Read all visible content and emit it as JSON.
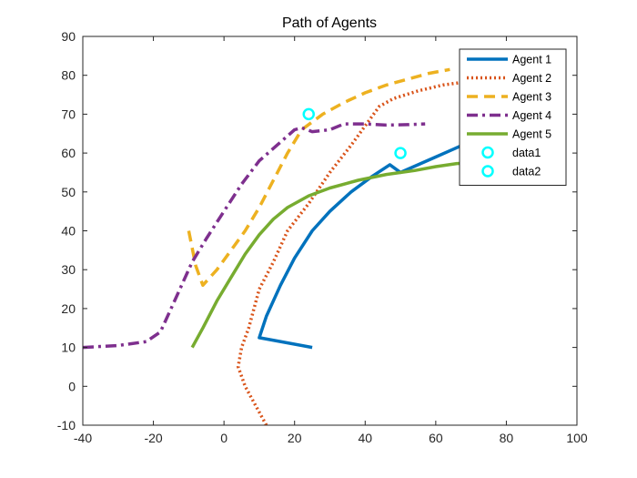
{
  "chart_data": {
    "type": "line",
    "title": "Path of Agents",
    "xlabel": "",
    "ylabel": "",
    "xlim": [
      -40,
      100
    ],
    "ylim": [
      -10,
      90
    ],
    "xticks": [
      -40,
      -20,
      0,
      20,
      40,
      60,
      80,
      100
    ],
    "yticks": [
      -10,
      0,
      10,
      20,
      30,
      40,
      50,
      60,
      70,
      80,
      90
    ],
    "grid": false,
    "legend_position": "top-right",
    "series": [
      {
        "name": "Agent 1",
        "color": "#0072BD",
        "style": "solid",
        "points": [
          [
            25,
            10
          ],
          [
            10,
            12.5
          ],
          [
            12,
            18
          ],
          [
            16,
            26
          ],
          [
            20,
            33
          ],
          [
            25,
            40
          ],
          [
            30,
            45
          ],
          [
            36,
            50
          ],
          [
            42,
            54
          ],
          [
            47,
            57
          ],
          [
            50,
            55
          ],
          [
            55,
            57
          ],
          [
            60,
            59
          ],
          [
            65,
            61
          ],
          [
            70,
            63
          ],
          [
            75,
            65
          ]
        ]
      },
      {
        "name": "Agent 2",
        "color": "#D95319",
        "style": "dotted",
        "points": [
          [
            12,
            -10
          ],
          [
            9,
            -5
          ],
          [
            6,
            0
          ],
          [
            4,
            5
          ],
          [
            5,
            10
          ],
          [
            7,
            15
          ],
          [
            10,
            25
          ],
          [
            14,
            32
          ],
          [
            18,
            40
          ],
          [
            24,
            47
          ],
          [
            30,
            55
          ],
          [
            36,
            62
          ],
          [
            40,
            67
          ],
          [
            44,
            72
          ],
          [
            48,
            74
          ],
          [
            55,
            76
          ],
          [
            62,
            77.5
          ],
          [
            70,
            78.5
          ],
          [
            78,
            79
          ]
        ]
      },
      {
        "name": "Agent 3",
        "color": "#EDB120",
        "style": "dashed",
        "points": [
          [
            -10,
            40
          ],
          [
            -8,
            31
          ],
          [
            -6,
            26
          ],
          [
            -2,
            30
          ],
          [
            2,
            35
          ],
          [
            6,
            40
          ],
          [
            10,
            46
          ],
          [
            14,
            53
          ],
          [
            18,
            60
          ],
          [
            22,
            66
          ],
          [
            28,
            70
          ],
          [
            34,
            73
          ],
          [
            40,
            75.5
          ],
          [
            46,
            77.5
          ],
          [
            52,
            79
          ],
          [
            58,
            80.5
          ],
          [
            64,
            81.5
          ]
        ]
      },
      {
        "name": "Agent 4",
        "color": "#7E2F8E",
        "style": "dashdot",
        "points": [
          [
            -40,
            10
          ],
          [
            -30,
            10.5
          ],
          [
            -22,
            11.5
          ],
          [
            -18,
            14
          ],
          [
            -15,
            20
          ],
          [
            -12,
            26
          ],
          [
            -9,
            32
          ],
          [
            -5,
            38
          ],
          [
            0,
            45
          ],
          [
            5,
            52
          ],
          [
            10,
            58
          ],
          [
            15,
            62
          ],
          [
            20,
            66
          ],
          [
            22,
            66.5
          ],
          [
            25,
            65.5
          ],
          [
            30,
            66
          ],
          [
            34,
            67.5
          ],
          [
            40,
            67.5
          ],
          [
            46,
            67.2
          ],
          [
            52,
            67.3
          ],
          [
            57,
            67.5
          ]
        ]
      },
      {
        "name": "Agent 5",
        "color": "#77AC30",
        "style": "solid",
        "points": [
          [
            -9,
            10
          ],
          [
            -6,
            15
          ],
          [
            -2,
            22
          ],
          [
            2,
            28
          ],
          [
            6,
            34
          ],
          [
            10,
            39
          ],
          [
            14,
            43
          ],
          [
            18,
            46
          ],
          [
            24,
            49
          ],
          [
            30,
            51
          ],
          [
            38,
            53
          ],
          [
            46,
            54.5
          ],
          [
            54,
            55.5
          ],
          [
            60,
            56.5
          ],
          [
            66,
            57.3
          ],
          [
            72,
            57.5
          ]
        ]
      },
      {
        "name": "data1",
        "color": "#00FFFF",
        "style": "marker-circle",
        "points": [
          [
            24,
            70
          ]
        ]
      },
      {
        "name": "data2",
        "color": "#00FFFF",
        "style": "marker-circle",
        "points": [
          [
            50,
            60
          ]
        ]
      }
    ]
  }
}
